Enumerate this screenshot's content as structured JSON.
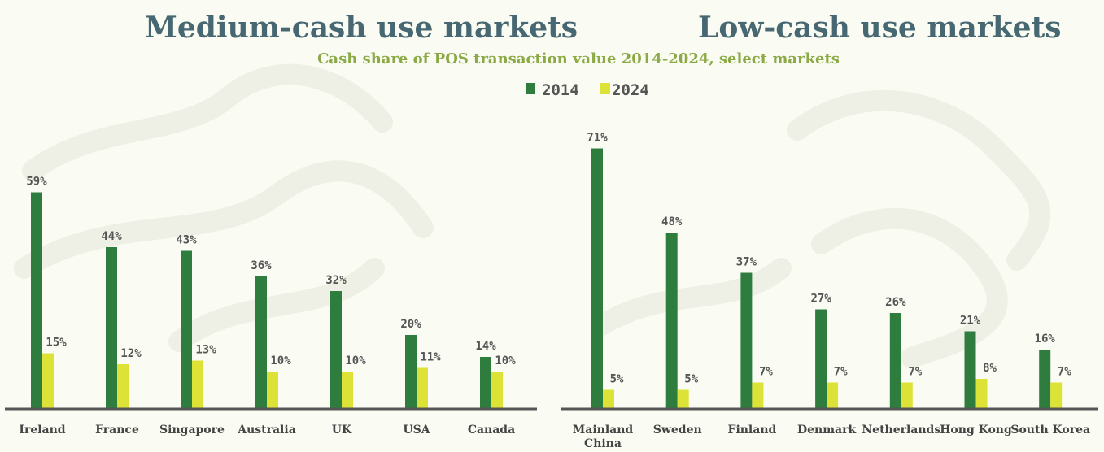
{
  "headings": {
    "left": "Medium-cash use markets",
    "right": "Low-cash use markets"
  },
  "colors": {
    "series_2014": "#2e7d3e",
    "series_2024": "#dde236",
    "heading": "#476872",
    "subtitle": "#8ba945",
    "text": "#555555",
    "background": "#fafcf3"
  },
  "chart_data": [
    {
      "type": "bar",
      "title": "Cash share of POS transaction value 2014-2024, select markets",
      "legend": [
        "2014",
        "2024"
      ],
      "legend_position": "top-center",
      "grid": false,
      "ylim": [
        0,
        100
      ],
      "categories": [
        "Ireland",
        "France",
        "Singapore",
        "Australia",
        "UK",
        "USA",
        "Canada"
      ],
      "series": [
        {
          "name": "2014",
          "values": [
            59,
            44,
            43,
            36,
            32,
            20,
            14
          ]
        },
        {
          "name": "2024",
          "values": [
            15,
            12,
            13,
            10,
            10,
            11,
            10
          ]
        }
      ]
    },
    {
      "type": "bar",
      "grid": false,
      "ylim": [
        0,
        100
      ],
      "categories": [
        "Mainland China",
        "Sweden",
        "Finland",
        "Denmark",
        "Netherlands",
        "Hong Kong",
        "South Korea"
      ],
      "series": [
        {
          "name": "2014",
          "values": [
            71,
            48,
            37,
            27,
            26,
            21,
            16
          ]
        },
        {
          "name": "2024",
          "values": [
            5,
            5,
            7,
            7,
            7,
            8,
            7
          ]
        }
      ]
    }
  ]
}
